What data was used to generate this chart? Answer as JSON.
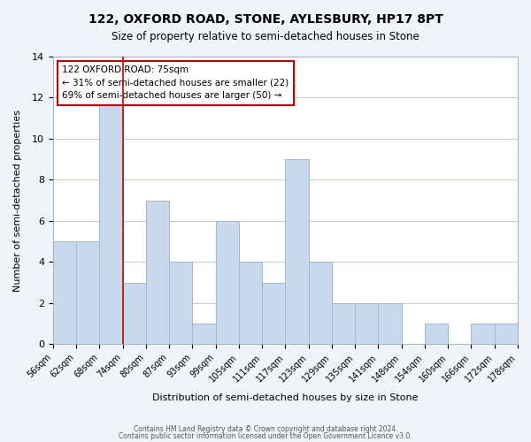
{
  "title_line1": "122, OXFORD ROAD, STONE, AYLESBURY, HP17 8PT",
  "title_line2": "Size of property relative to semi-detached houses in Stone",
  "xlabel": "Distribution of semi-detached houses by size in Stone",
  "ylabel": "Number of semi-detached properties",
  "bar_color": "#c8d9ed",
  "bar_edge_color": "#a0b8d0",
  "highlight_bar_index": 3,
  "highlight_color": "#c8d9ed",
  "bins": [
    56,
    62,
    68,
    74,
    80,
    87,
    93,
    99,
    105,
    111,
    117,
    123,
    129,
    135,
    141,
    148,
    154,
    160,
    166,
    172,
    178
  ],
  "bin_labels": [
    "56sqm",
    "62sqm",
    "68sqm",
    "74sqm",
    "80sqm",
    "87sqm",
    "93sqm",
    "99sqm",
    "105sqm",
    "111sqm",
    "117sqm",
    "123sqm",
    "129sqm",
    "135sqm",
    "141sqm",
    "148sqm",
    "154sqm",
    "160sqm",
    "166sqm",
    "172sqm",
    "178sqm"
  ],
  "counts": [
    5,
    5,
    12,
    3,
    7,
    4,
    1,
    6,
    4,
    3,
    9,
    4,
    2,
    2,
    2,
    0,
    1,
    0,
    1,
    1
  ],
  "ylim": [
    0,
    14
  ],
  "yticks": [
    0,
    2,
    4,
    6,
    8,
    10,
    12,
    14
  ],
  "annotation_title": "122 OXFORD ROAD: 75sqm",
  "annotation_line1": "← 31% of semi-detached houses are smaller (22)",
  "annotation_line2": "69% of semi-detached houses are larger (50) →",
  "annotation_box_color": "#ffffff",
  "annotation_box_edge": "#cc0000",
  "footer_line1": "Contains HM Land Registry data © Crown copyright and database right 2024.",
  "footer_line2": "Contains public sector information licensed under the Open Government Licence v3.0.",
  "background_color": "#f0f4f8",
  "plot_bg_color": "#ffffff",
  "grid_color": "#c0ccd8"
}
